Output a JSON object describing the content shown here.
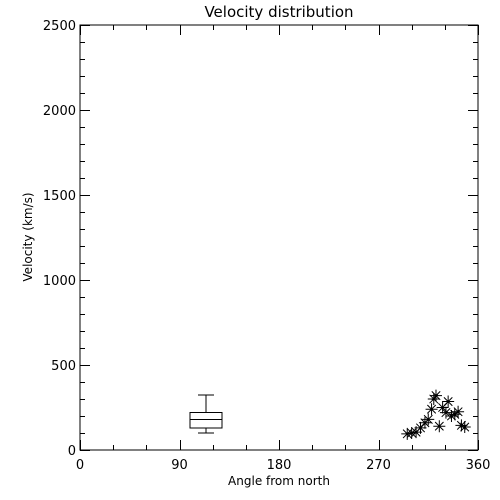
{
  "chart_data": {
    "type": "scatter",
    "title": "Velocity distribution",
    "xlabel": "Angle from north",
    "ylabel": "Velocity (km/s)",
    "xlim": [
      0,
      360
    ],
    "ylim": [
      0,
      2500
    ],
    "xticks": [
      0,
      90,
      180,
      270,
      360
    ],
    "yticks": [
      0,
      500,
      1000,
      1500,
      2000,
      2500
    ],
    "grid": false,
    "boxplot": {
      "x": 114,
      "min": 100,
      "q1": 130,
      "median": 180,
      "q3": 220,
      "max": 325
    },
    "points": [
      {
        "x": 296,
        "y": 95
      },
      {
        "x": 300,
        "y": 100
      },
      {
        "x": 304,
        "y": 105
      },
      {
        "x": 308,
        "y": 130
      },
      {
        "x": 312,
        "y": 160
      },
      {
        "x": 315,
        "y": 180
      },
      {
        "x": 318,
        "y": 240
      },
      {
        "x": 320,
        "y": 300
      },
      {
        "x": 322,
        "y": 320
      },
      {
        "x": 325,
        "y": 140
      },
      {
        "x": 328,
        "y": 250
      },
      {
        "x": 331,
        "y": 220
      },
      {
        "x": 333,
        "y": 285
      },
      {
        "x": 336,
        "y": 200
      },
      {
        "x": 339,
        "y": 210
      },
      {
        "x": 342,
        "y": 225
      },
      {
        "x": 345,
        "y": 145
      },
      {
        "x": 348,
        "y": 135
      }
    ]
  }
}
